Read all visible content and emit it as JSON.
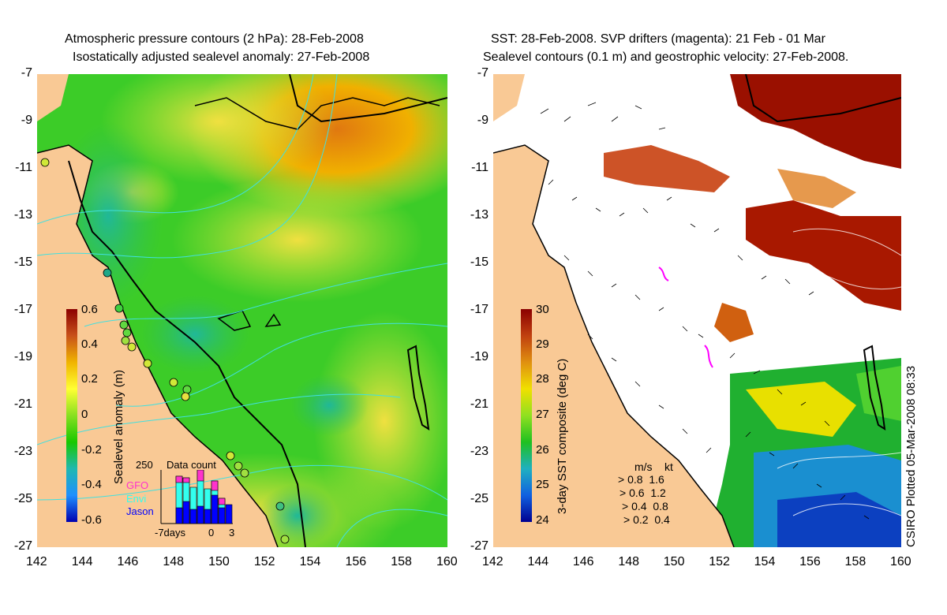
{
  "left_panel": {
    "title_line1": "Atmospheric pressure contours (2 hPa): 28-Feb-2008",
    "title_line2": "Isostatically adjusted sealevel anomaly: 27-Feb-2008",
    "colorbar": {
      "label": "Sealevel anomaly (m)",
      "ticks": [
        "0.6",
        "0.4",
        "0.2",
        "0",
        "-0.2",
        "-0.4",
        "-0.6"
      ],
      "colors": [
        "#8b0000",
        "#c8511a",
        "#f0b400",
        "#ffff33",
        "#88e020",
        "#18c800",
        "#20b8b0",
        "#1e90ff",
        "#0000b0"
      ]
    },
    "data_count": {
      "title": "Data count",
      "max_label": "250",
      "legend": [
        {
          "label": "GFO",
          "color": "#ff33cc"
        },
        {
          "label": "Envi",
          "color": "#33ffee"
        },
        {
          "label": "Jason",
          "color": "#0000ff"
        }
      ],
      "x_labels": [
        "-7days",
        "0",
        "3"
      ]
    }
  },
  "right_panel": {
    "title_line1": "SST: 28-Feb-2008. SVP drifters (magenta): 21 Feb - 01 Mar",
    "title_line2": "Sealevel contours (0.1 m) and geostrophic velocity: 27-Feb-2008.",
    "colorbar": {
      "label": "3-day SST composite (deg C)",
      "ticks": [
        "30",
        "29",
        "28",
        "27",
        "26",
        "25",
        "24"
      ],
      "colors": [
        "#8b0000",
        "#c04010",
        "#e09010",
        "#f0e000",
        "#90e020",
        "#20c020",
        "#20b0c0",
        "#1060e0",
        "#000090"
      ]
    },
    "velocity_legend": {
      "header_ms": "m/s",
      "header_kt": "kt",
      "rows": [
        {
          "ms": "0.8",
          "kt": "1.6"
        },
        {
          "ms": "0.6",
          "kt": "1.2"
        },
        {
          "ms": "0.4",
          "kt": "0.8"
        },
        {
          "ms": "0.2",
          "kt": "0.4"
        }
      ]
    },
    "credit": "CSIRO Plotted 05-Mar-2008 08:33"
  },
  "axes": {
    "y_ticks": [
      "-7",
      "-9",
      "-11",
      "-13",
      "-15",
      "-17",
      "-19",
      "-21",
      "-23",
      "-25",
      "-27"
    ],
    "x_ticks": [
      "142",
      "144",
      "146",
      "148",
      "150",
      "152",
      "154",
      "156",
      "158",
      "160"
    ],
    "lat_range": [
      -27,
      -7
    ],
    "lon_range": [
      142,
      160
    ]
  },
  "colors": {
    "land": "#f9c995",
    "contour": "#40e0e0",
    "drifter": "#ff00ff"
  }
}
